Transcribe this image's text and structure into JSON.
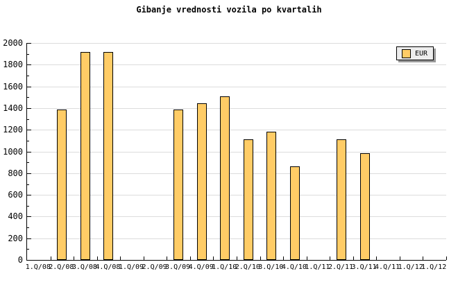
{
  "legend": {
    "label": "EUR"
  },
  "colors": {
    "background": "#FFFFFF",
    "bar_fill": "#FFCC66",
    "bar_border": "#000000",
    "grid": "#DCDCDC",
    "axis": "#000000",
    "text": "#000000",
    "legend_bg": "#EDEDED",
    "legend_shadow": "#999999"
  },
  "chart_data": {
    "type": "bar",
    "title": "Gibanje vrednosti vozila po kvartalih",
    "xlabel": "",
    "ylabel": "",
    "categories": [
      "1.Q/08",
      "2.Q/08",
      "3.Q/08",
      "4.Q/08",
      "1.Q/09",
      "2.Q/09",
      "3.Q/09",
      "4.Q/09",
      "1.Q/10",
      "2.Q/10",
      "3.Q/10",
      "4.Q/10",
      "1.Q/11",
      "2.Q/11",
      "3.Q/11",
      "4.Q/11",
      "1.Q/12",
      "1.Q/12"
    ],
    "series": [
      {
        "name": "EUR",
        "values": [
          null,
          1385,
          1915,
          1915,
          null,
          null,
          1385,
          1445,
          1510,
          1110,
          1185,
          860,
          null,
          1115,
          985,
          null,
          null,
          null
        ]
      }
    ],
    "ylim": [
      0,
      2000
    ],
    "ytick_step": 200,
    "yminor_step": 100,
    "grid": "horizontal-major",
    "legend_position": "top-right"
  }
}
